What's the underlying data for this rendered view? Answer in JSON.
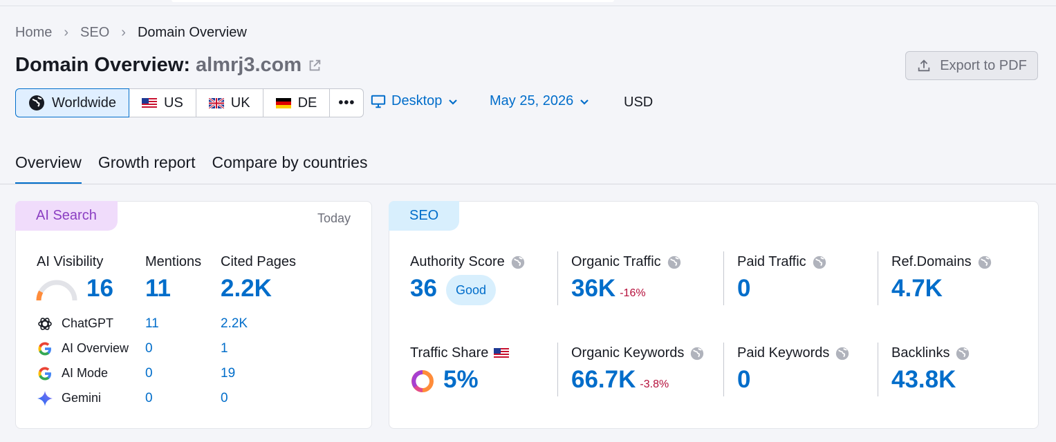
{
  "breadcrumb": {
    "home": "Home",
    "seo": "SEO",
    "current": "Domain Overview"
  },
  "title": {
    "prefix": "Domain Overview:",
    "domain": "almrj3.com"
  },
  "export_label": "Export to PDF",
  "regions": [
    {
      "label": "Worldwide",
      "active": true
    },
    {
      "label": "US"
    },
    {
      "label": "UK"
    },
    {
      "label": "DE"
    },
    {
      "label": "•••"
    }
  ],
  "device": "Desktop",
  "date": "May 25, 2026",
  "currency": "USD",
  "tabs": [
    "Overview",
    "Growth report",
    "Compare by countries"
  ],
  "ai_card": {
    "badge": "AI Search",
    "period": "Today",
    "headers": {
      "visibility": "AI Visibility",
      "mentions": "Mentions",
      "cited": "Cited Pages"
    },
    "visibility": "16",
    "visibility_fraction": 0.16,
    "mentions": "11",
    "cited": "2.2K",
    "rows": [
      {
        "name": "ChatGPT",
        "mentions": "11",
        "cited": "2.2K",
        "icon": "chatgpt-icon"
      },
      {
        "name": "AI Overview",
        "mentions": "0",
        "cited": "1",
        "icon": "google-icon"
      },
      {
        "name": "AI Mode",
        "mentions": "0",
        "cited": "19",
        "icon": "google-icon"
      },
      {
        "name": "Gemini",
        "mentions": "0",
        "cited": "0",
        "icon": "gemini-icon"
      }
    ]
  },
  "seo_card": {
    "badge": "SEO",
    "authority": {
      "label": "Authority Score",
      "value": "36",
      "rating": "Good"
    },
    "organic_traffic": {
      "label": "Organic Traffic",
      "value": "36K",
      "delta": "-16%"
    },
    "paid_traffic": {
      "label": "Paid Traffic",
      "value": "0"
    },
    "ref_domains": {
      "label": "Ref.Domains",
      "value": "4.7K"
    },
    "traffic_share": {
      "label": "Traffic Share",
      "value": "5%"
    },
    "organic_keywords": {
      "label": "Organic Keywords",
      "value": "66.7K",
      "delta": "-3.8%"
    },
    "paid_keywords": {
      "label": "Paid Keywords",
      "value": "0"
    },
    "backlinks": {
      "label": "Backlinks",
      "value": "43.8K"
    }
  },
  "colors": {
    "accent": "#006dca",
    "negative": "#b50f3b"
  }
}
